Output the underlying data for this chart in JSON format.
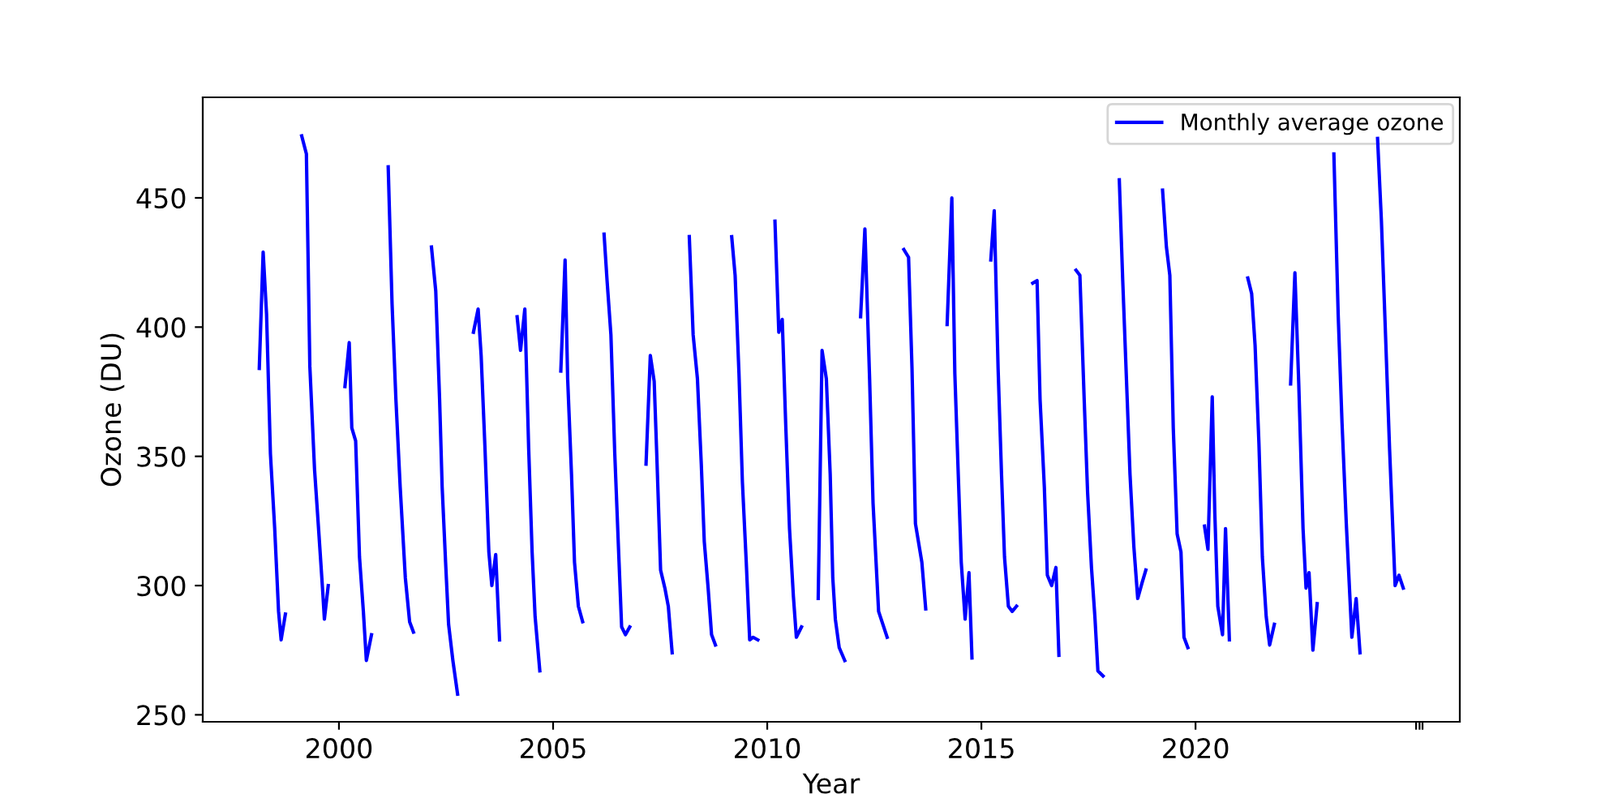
{
  "chart_data": {
    "type": "line",
    "xlabel": "Year",
    "ylabel": "Ozone (DU)",
    "xlim": [
      1996.82,
      2026.17
    ],
    "ylim": [
      247.3,
      488.9
    ],
    "xticks": [
      2000,
      2005,
      2010,
      2015,
      2020,
      {
        "value": 2025.15,
        "label": null
      },
      {
        "value": 2025.23,
        "label": null
      },
      {
        "value": 2025.3,
        "label": null
      }
    ],
    "yticks": [
      250,
      300,
      350,
      400,
      450
    ],
    "legend": "top right",
    "grid": false,
    "series": [
      {
        "name": "Monthly average ozone",
        "color": "#0000ff",
        "x": [
          1998.14,
          1998.23,
          1998.31,
          1998.4,
          1998.5,
          1998.59,
          1998.65,
          1998.75,
          1998.95,
          1999.13,
          1999.24,
          1999.32,
          1999.43,
          1999.52,
          1999.62,
          1999.66,
          1999.75,
          1999.95,
          2000.14,
          2000.24,
          2000.3,
          2000.39,
          2000.48,
          2000.57,
          2000.64,
          2000.76,
          2000.95,
          2001.15,
          2001.24,
          2001.33,
          2001.43,
          2001.55,
          2001.65,
          2001.74,
          2001.95,
          2002.16,
          2002.26,
          2002.35,
          2002.41,
          2002.49,
          2002.56,
          2002.66,
          2002.77,
          2002.95,
          2003.14,
          2003.25,
          2003.32,
          2003.41,
          2003.5,
          2003.57,
          2003.66,
          2003.75,
          2003.95,
          2004.16,
          2004.24,
          2004.34,
          2004.43,
          2004.51,
          2004.58,
          2004.69,
          2004.95,
          2005.18,
          2005.28,
          2005.34,
          2005.43,
          2005.5,
          2005.59,
          2005.69,
          2005.95,
          2006.19,
          2006.26,
          2006.35,
          2006.44,
          2006.54,
          2006.6,
          2006.69,
          2006.79,
          2006.95,
          2007.17,
          2007.27,
          2007.36,
          2007.42,
          2007.51,
          2007.61,
          2007.69,
          2007.78,
          2007.95,
          2008.18,
          2008.27,
          2008.37,
          2008.46,
          2008.53,
          2008.62,
          2008.7,
          2008.79,
          2008.95,
          2009.17,
          2009.25,
          2009.34,
          2009.42,
          2009.51,
          2009.59,
          2009.67,
          2009.78,
          2009.95,
          2010.18,
          2010.27,
          2010.35,
          2010.43,
          2010.52,
          2010.61,
          2010.68,
          2010.8,
          2010.95,
          2011.19,
          2011.28,
          2011.38,
          2011.47,
          2011.53,
          2011.59,
          2011.68,
          2011.81,
          2011.95,
          2012.18,
          2012.28,
          2012.39,
          2012.47,
          2012.6,
          2012.7,
          2012.8,
          2012.95,
          2013.19,
          2013.3,
          2013.38,
          2013.46,
          2013.61,
          2013.7,
          2013.95,
          2014.2,
          2014.31,
          2014.38,
          2014.46,
          2014.53,
          2014.62,
          2014.71,
          2014.78,
          2014.95,
          2015.22,
          2015.3,
          2015.39,
          2015.47,
          2015.54,
          2015.63,
          2015.72,
          2015.82,
          2015.95,
          2016.2,
          2016.3,
          2016.37,
          2016.47,
          2016.54,
          2016.64,
          2016.74,
          2016.81,
          2016.95,
          2017.21,
          2017.3,
          2017.4,
          2017.48,
          2017.57,
          2017.65,
          2017.72,
          2017.84,
          2017.95,
          2018.22,
          2018.3,
          2018.4,
          2018.47,
          2018.56,
          2018.65,
          2018.75,
          2018.84,
          2018.95,
          2019.23,
          2019.32,
          2019.4,
          2019.48,
          2019.57,
          2019.66,
          2019.73,
          2019.82,
          2019.95,
          2020.21,
          2020.29,
          2020.39,
          2020.45,
          2020.52,
          2020.63,
          2020.7,
          2020.79,
          2020.95,
          2021.22,
          2021.31,
          2021.39,
          2021.48,
          2021.56,
          2021.65,
          2021.73,
          2021.84,
          2021.95,
          2022.22,
          2022.32,
          2022.41,
          2022.51,
          2022.58,
          2022.65,
          2022.74,
          2022.84,
          2022.95,
          2023.23,
          2023.33,
          2023.42,
          2023.52,
          2023.65,
          2023.75,
          2023.84,
          2023.95,
          2024.25,
          2024.34,
          2024.44,
          2024.53,
          2024.66,
          2024.75,
          2024.85
        ],
        "values": [
          384,
          429,
          405,
          351,
          322,
          290,
          279,
          289,
          null,
          474,
          467,
          385,
          345,
          323,
          298,
          287,
          300,
          null,
          377,
          394,
          361,
          356,
          311,
          290,
          271,
          281,
          null,
          462,
          409,
          372,
          338,
          303,
          286,
          282,
          null,
          431,
          414,
          372,
          338,
          309,
          285,
          271,
          258,
          null,
          398,
          407,
          389,
          353,
          313,
          300,
          312,
          279,
          null,
          404,
          391,
          407,
          353,
          313,
          288,
          267,
          null,
          383,
          426,
          380,
          343,
          309,
          292,
          286,
          null,
          436,
          418,
          397,
          351,
          309,
          284,
          281,
          284,
          null,
          347,
          389,
          379,
          351,
          306,
          299,
          292,
          274,
          null,
          435,
          397,
          380,
          347,
          317,
          299,
          281,
          277,
          null,
          435,
          420,
          382,
          340,
          309,
          279,
          280,
          279,
          null,
          441,
          398,
          403,
          363,
          322,
          296,
          280,
          284,
          null,
          295,
          391,
          380,
          343,
          303,
          287,
          276,
          271,
          null,
          404,
          438,
          380,
          332,
          290,
          285,
          280,
          null,
          430,
          427,
          384,
          324,
          309,
          291,
          null,
          401,
          450,
          382,
          343,
          309,
          287,
          305,
          272,
          null,
          426,
          445,
          384,
          343,
          311,
          292,
          290,
          292,
          null,
          417,
          418,
          372,
          338,
          304,
          300,
          307,
          273,
          null,
          422,
          420,
          372,
          336,
          307,
          288,
          267,
          265,
          null,
          457,
          418,
          374,
          343,
          315,
          295,
          301,
          306,
          null,
          453,
          431,
          420,
          361,
          320,
          313,
          280,
          276,
          null,
          323,
          314,
          373,
          328,
          292,
          281,
          322,
          279,
          null,
          419,
          413,
          393,
          355,
          311,
          288,
          277,
          285,
          null,
          378,
          421,
          378,
          322,
          299,
          305,
          275,
          293,
          null,
          467,
          405,
          363,
          324,
          280,
          295,
          274,
          null,
          473,
          441,
          395,
          353,
          300,
          304,
          299
        ]
      }
    ]
  }
}
